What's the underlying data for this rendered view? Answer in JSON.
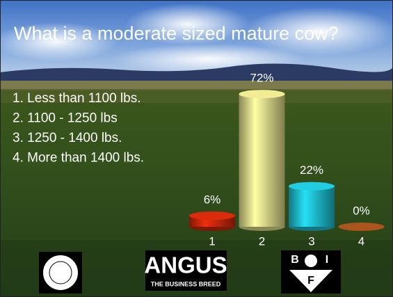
{
  "title": "What is a moderate sized mature cow?",
  "options": [
    "1.  Less than 1100 lbs.",
    "2.  1100 - 1250 lbs",
    "3.  1250 - 1400 lbs.",
    "4.  More than 1400 lbs."
  ],
  "chart_data": {
    "type": "bar",
    "categories": [
      "1",
      "2",
      "3",
      "4"
    ],
    "values": [
      6,
      72,
      22,
      0
    ],
    "value_labels": [
      "6%",
      "72%",
      "22%",
      "0%"
    ],
    "colors": [
      "#d02a0a",
      "#e6e28e",
      "#1fc4d6",
      "#a4521c"
    ]
  },
  "logos": {
    "angus": "ANGUS",
    "angus_tagline": "THE BUSINESS BREED",
    "bif_letters": [
      "B",
      "I",
      "F"
    ]
  }
}
